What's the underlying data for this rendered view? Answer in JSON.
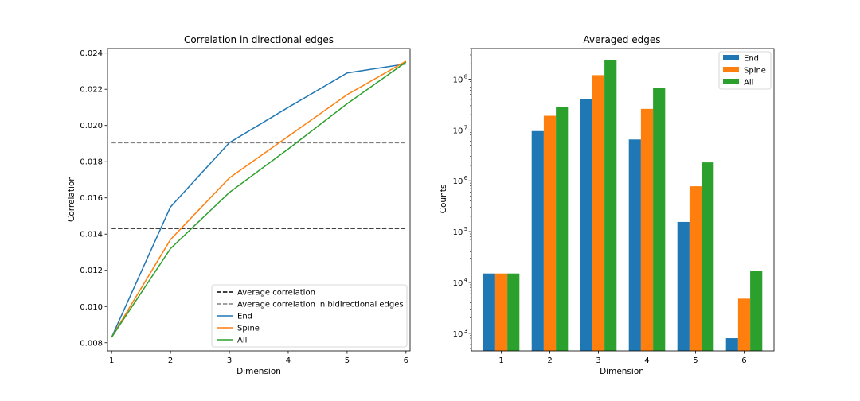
{
  "chart_data": [
    {
      "type": "line",
      "title": "Correlation in directional edges",
      "xlabel": "Dimension",
      "ylabel": "Correlation",
      "xlim": [
        0.93,
        6.07
      ],
      "ylim": [
        0.00755,
        0.02425
      ],
      "xticks": [
        1,
        2,
        3,
        4,
        5,
        6
      ],
      "yticks": [
        0.008,
        0.01,
        0.012,
        0.014,
        0.016,
        0.018,
        0.02,
        0.022,
        0.024
      ],
      "ytick_labels": [
        "0.008",
        "0.010",
        "0.012",
        "0.014",
        "0.016",
        "0.018",
        "0.020",
        "0.022",
        "0.024"
      ],
      "legend_position": "lower-right",
      "x": [
        1,
        2,
        3,
        4,
        5,
        6
      ],
      "hlines": [
        {
          "name": "Average correlation",
          "value": 0.01432,
          "color": "#000000",
          "dash": "dashed"
        },
        {
          "name": "Average correlation in bidirectional edges",
          "value": 0.01905,
          "color": "#808080",
          "dash": "dashed"
        }
      ],
      "series": [
        {
          "name": "End",
          "color": "#1f77b4",
          "values": [
            0.0083,
            0.0155,
            0.01905,
            0.021,
            0.0229,
            0.0234
          ]
        },
        {
          "name": "Spine",
          "color": "#ff7f0e",
          "values": [
            0.0083,
            0.0137,
            0.0171,
            0.0194,
            0.0217,
            0.02355
          ]
        },
        {
          "name": "All",
          "color": "#2ca02c",
          "values": [
            0.0083,
            0.0132,
            0.0163,
            0.0187,
            0.0212,
            0.0235
          ]
        }
      ]
    },
    {
      "type": "bar",
      "title": "Averaged edges",
      "xlabel": "Dimension",
      "ylabel": "Counts",
      "yscale": "log",
      "ylim": [
        450,
        400000000
      ],
      "categories": [
        "1",
        "2",
        "3",
        "4",
        "5",
        "6"
      ],
      "yticks": [
        {
          "base": "10",
          "exp": "3",
          "value": 1000
        },
        {
          "base": "10",
          "exp": "4",
          "value": 10000
        },
        {
          "base": "10",
          "exp": "5",
          "value": 100000
        },
        {
          "base": "10",
          "exp": "6",
          "value": 1000000
        },
        {
          "base": "10",
          "exp": "7",
          "value": 10000000
        },
        {
          "base": "10",
          "exp": "8",
          "value": 100000000
        }
      ],
      "legend_position": "top-right",
      "series": [
        {
          "name": "End",
          "color": "#1f77b4",
          "values": [
            15000,
            9500000,
            40000000,
            6500000,
            155000,
            800
          ]
        },
        {
          "name": "Spine",
          "color": "#ff7f0e",
          "values": [
            15000,
            19000000,
            120000000,
            26000000,
            780000,
            4800
          ]
        },
        {
          "name": "All",
          "color": "#2ca02c",
          "values": [
            15000,
            28000000,
            235000000,
            66000000,
            2300000,
            17000
          ]
        }
      ]
    }
  ]
}
